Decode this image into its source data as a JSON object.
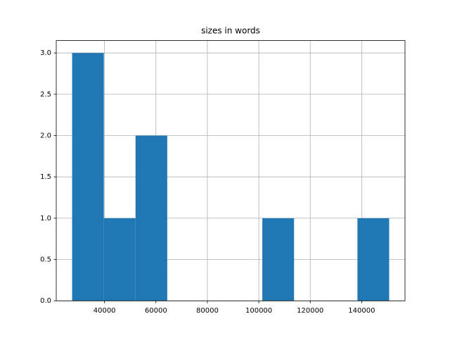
{
  "chart_data": {
    "type": "histogram",
    "title": "sizes in words",
    "bins": [
      27400,
      39730,
      52060,
      64390,
      76710,
      89040,
      101370,
      113700,
      126030,
      138360,
      150690
    ],
    "counts": [
      3,
      1,
      2,
      0,
      0,
      0,
      1,
      0,
      0,
      1
    ],
    "color": "#1f77b4",
    "xlim": [
      21230,
      156850
    ],
    "xticks": [
      40000,
      60000,
      80000,
      100000,
      120000,
      140000
    ],
    "ylim": [
      0,
      3.15
    ],
    "yticks": [
      {
        "value": 0,
        "label": "0.0"
      },
      {
        "value": 0.5,
        "label": "0.5"
      },
      {
        "value": 1,
        "label": "1.0"
      },
      {
        "value": 1.5,
        "label": "1.5"
      },
      {
        "value": 2,
        "label": "2.0"
      },
      {
        "value": 2.5,
        "label": "2.5"
      },
      {
        "value": 3,
        "label": "3.0"
      }
    ],
    "grid": true
  }
}
